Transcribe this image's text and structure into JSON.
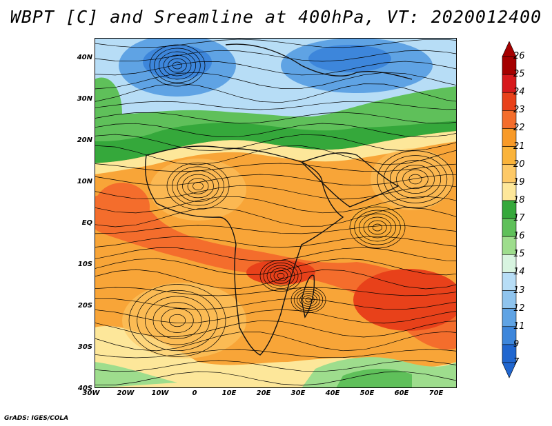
{
  "title": "WBPT [C] and Sreamline at 400hPa, VT: 2020012400",
  "credit": "GrADS: IGES/COLA",
  "lat_labels": [
    "40N",
    "30N",
    "20N",
    "10N",
    "EQ",
    "10S",
    "20S",
    "30S",
    "40S"
  ],
  "lon_labels": [
    "30W",
    "20W",
    "10W",
    "0",
    "10E",
    "20E",
    "30E",
    "40E",
    "50E",
    "60E",
    "70E"
  ],
  "colorbar": {
    "labels": [
      "26",
      "25",
      "24",
      "23",
      "22",
      "21",
      "20",
      "19",
      "18",
      "17",
      "16",
      "15",
      "14",
      "13",
      "12",
      "11",
      "9",
      "7"
    ],
    "colors": [
      "#a50000",
      "#d7191c",
      "#e8411a",
      "#f46d2c",
      "#f89a28",
      "#fab33a",
      "#fdc967",
      "#fde79a",
      "#35a83b",
      "#5fc05a",
      "#9edd8d",
      "#d8f4e0",
      "#b7ddf6",
      "#8fc4ee",
      "#5fa3e4",
      "#3d86db",
      "#2066cf"
    ]
  }
}
